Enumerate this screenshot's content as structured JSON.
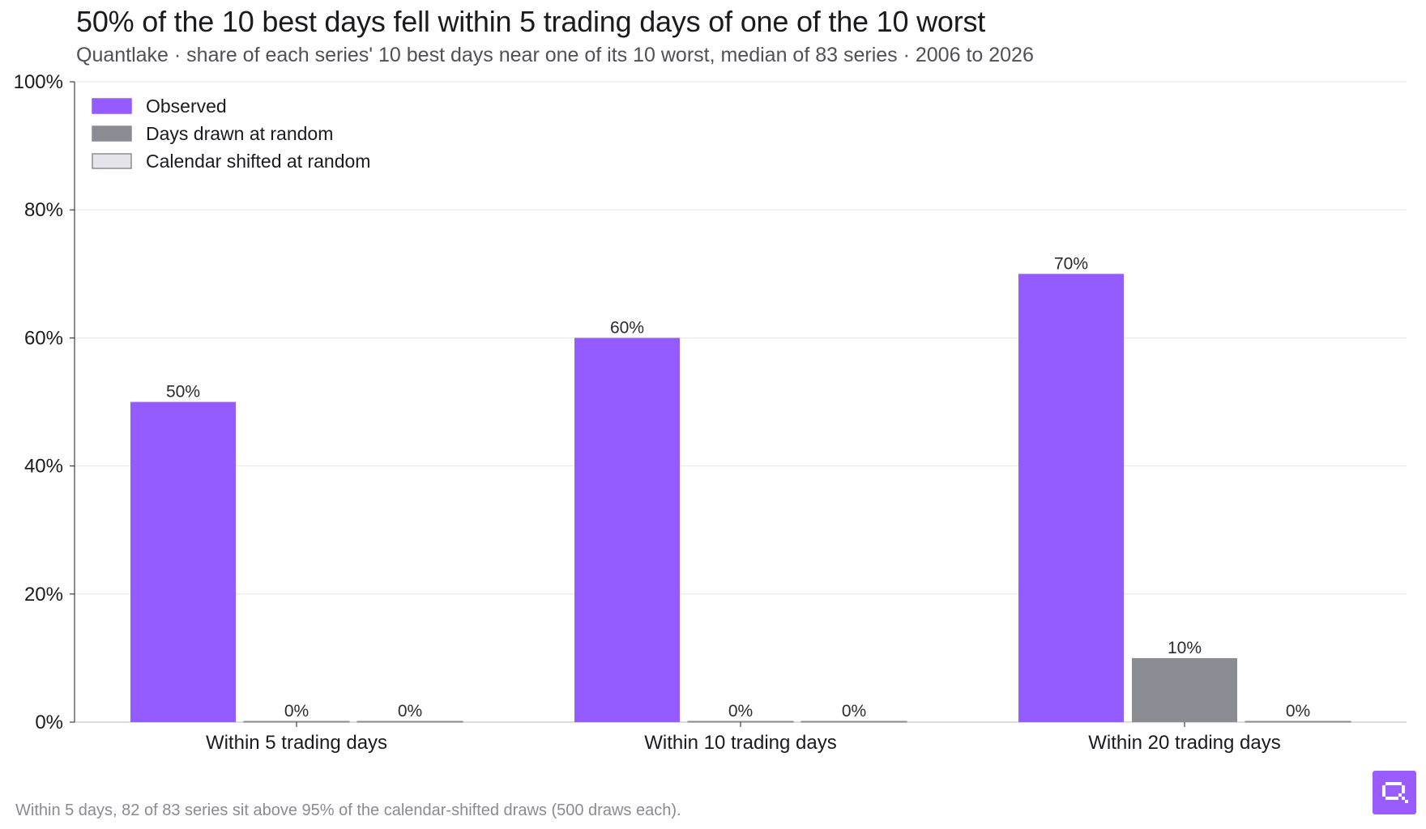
{
  "header": {
    "title": "50% of the 10 best days fell within 5 trading days of one of the 10 worst",
    "subtitle": "Quantlake · share of each series' 10 best days near one of its 10 worst, median of 83 series · 2006 to 2026"
  },
  "footer": {
    "note": "Within 5 days, 82 of 83 series sit above 95% of the calendar-shifted draws (500 draws each).",
    "logo_icon": "quantlake-logo-icon"
  },
  "chart_data": {
    "type": "bar",
    "categories": [
      "Within 5 trading days",
      "Within 10 trading days",
      "Within 20 trading days"
    ],
    "series": [
      {
        "name": "Observed",
        "values": [
          50,
          60,
          70
        ],
        "labels": [
          "50%",
          "60%",
          "70%"
        ],
        "color": "#945cff",
        "stroke": "#945cff"
      },
      {
        "name": "Days drawn at random",
        "values": [
          0,
          0,
          10
        ],
        "labels": [
          "0%",
          "0%",
          "10%"
        ],
        "color": "#8b8b93",
        "stroke": "#8b8b93"
      },
      {
        "name": "Calendar shifted at random",
        "values": [
          0,
          0,
          0
        ],
        "labels": [
          "0%",
          "0%",
          "0%"
        ],
        "color": "#e4e4ea",
        "stroke": "#8b8b93"
      }
    ],
    "ylim": [
      0,
      100
    ],
    "yticks": [
      0,
      20,
      40,
      60,
      80,
      100
    ],
    "ytick_labels": [
      "0%",
      "20%",
      "40%",
      "60%",
      "80%",
      "100%"
    ],
    "grid": true,
    "legend_position": "top-left",
    "xlabel": "",
    "ylabel": ""
  }
}
